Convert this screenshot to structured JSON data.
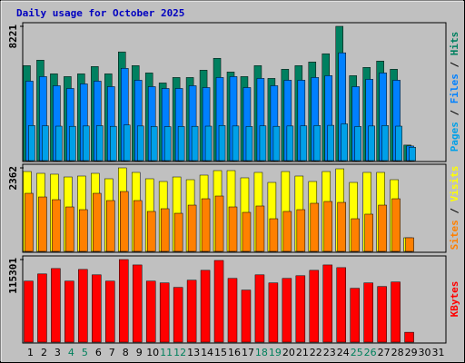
{
  "chart_data": [
    {
      "type": "bar",
      "title": "Daily usage for October 2025",
      "legend_separator": " / ",
      "series": [
        {
          "name": "Pages",
          "color": "#00a0e8",
          "values": [
            2150,
            2130,
            2110,
            2100,
            2120,
            2140,
            2100,
            2180,
            2120,
            2090,
            2080,
            2090,
            2100,
            2110,
            2150,
            2120,
            2090,
            2130,
            2100,
            2120,
            2130,
            2150,
            2160,
            2250,
            2090,
            2120,
            2150,
            2110,
            820,
            null,
            null
          ]
        },
        {
          "name": "Files",
          "color": "#0080ff",
          "values": [
            4866,
            5145,
            4586,
            4418,
            4698,
            4866,
            4530,
            5649,
            4922,
            4530,
            4418,
            4418,
            4586,
            4474,
            5089,
            5145,
            4474,
            5033,
            4586,
            4922,
            4922,
            5089,
            5201,
            6600,
            4530,
            4978,
            5369,
            4922,
            895,
            null,
            null
          ]
        },
        {
          "name": "Hits",
          "color": "#008060",
          "values": [
            5816,
            6152,
            5313,
            5145,
            5313,
            5760,
            5313,
            6655,
            5816,
            5369,
            4754,
            5089,
            5089,
            5537,
            6264,
            5425,
            5145,
            5816,
            5033,
            5593,
            5816,
            6040,
            6543,
            8221,
            5201,
            5705,
            6096,
            5593,
            951,
            null,
            null
          ]
        }
      ],
      "ylim": [
        0,
        8221
      ],
      "yticks": [
        8221
      ]
    },
    {
      "type": "bar",
      "legend_separator": " / ",
      "series": [
        {
          "name": "Sites",
          "color": "#ff8000",
          "values": [
            1643,
            1540,
            1463,
            1258,
            1181,
            1643,
            1438,
            1694,
            1438,
            1130,
            1207,
            1078,
            1309,
            1489,
            1566,
            1258,
            1104,
            1284,
            924,
            1130,
            1181,
            1361,
            1412,
            1386,
            924,
            1053,
            1309,
            1489,
            385,
            null,
            null
          ]
        },
        {
          "name": "Visits",
          "color": "#ffff00",
          "values": [
            2259,
            2208,
            2183,
            2105,
            2131,
            2208,
            2054,
            2362,
            2234,
            2054,
            1977,
            2105,
            2028,
            2157,
            2285,
            2285,
            2080,
            2234,
            1951,
            2259,
            2131,
            1977,
            2259,
            2336,
            1951,
            2234,
            2234,
            2028,
            385,
            null,
            null
          ]
        }
      ],
      "ylim": [
        0,
        2362
      ],
      "yticks": [
        2362
      ]
    },
    {
      "type": "bar",
      "series": [
        {
          "name": "KBytes",
          "color": "#ff0000",
          "values": [
            85222,
            95249,
            102769,
            85222,
            101516,
            93996,
            85222,
            115301,
            107783,
            85222,
            82716,
            76449,
            86476,
            100263,
            114048,
            88982,
            72690,
            93996,
            82716,
            88982,
            92743,
            100263,
            107783,
            104022,
            75196,
            82716,
            77703,
            83969,
            13786,
            null,
            null
          ]
        }
      ],
      "ylim": [
        0,
        115301
      ],
      "yticks": [
        115301
      ],
      "categories": [
        "1",
        "2",
        "3",
        "4",
        "5",
        "6",
        "7",
        "8",
        "9",
        "10",
        "11",
        "12",
        "13",
        "14",
        "15",
        "16",
        "17",
        "18",
        "19",
        "20",
        "21",
        "22",
        "23",
        "24",
        "25",
        "26",
        "27",
        "28",
        "29",
        "30",
        "31"
      ],
      "category_colors": [
        "#000000",
        "#000000",
        "#000000",
        "#00805c",
        "#00805c",
        "#000000",
        "#000000",
        "#000000",
        "#000000",
        "#000000",
        "#00805c",
        "#00805c",
        "#000000",
        "#000000",
        "#000000",
        "#000000",
        "#000000",
        "#00805c",
        "#00805c",
        "#000000",
        "#000000",
        "#000000",
        "#000000",
        "#000000",
        "#00805c",
        "#00805c",
        "#000000",
        "#000000",
        "#000000",
        "#000000",
        "#000000"
      ]
    }
  ]
}
